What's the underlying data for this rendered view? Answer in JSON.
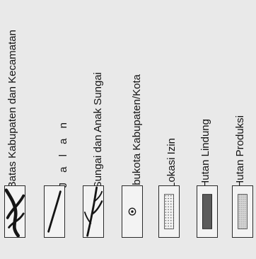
{
  "legend": {
    "items": [
      {
        "label": "Batas Kabupaten dan Kecamatan",
        "icon": "district-boundary-symbol"
      },
      {
        "label": "J a l a n",
        "icon": "road-symbol"
      },
      {
        "label": "Sungai dan Anak Sungai",
        "icon": "river-symbol"
      },
      {
        "label": "Ibukota Kabupaten/Kota",
        "icon": "capital-city-symbol"
      },
      {
        "label": "Lokasi Izin",
        "icon": "permit-location-symbol"
      },
      {
        "label": "Hutan Lindung",
        "icon": "protected-forest-symbol"
      },
      {
        "label": "Hutan Produksi",
        "icon": "production-forest-symbol"
      }
    ]
  },
  "colors": {
    "ink": "#151515",
    "protected_forest": "#5b5b5b",
    "production_forest": "#cfcfcf",
    "permit_dots": "#444444"
  }
}
